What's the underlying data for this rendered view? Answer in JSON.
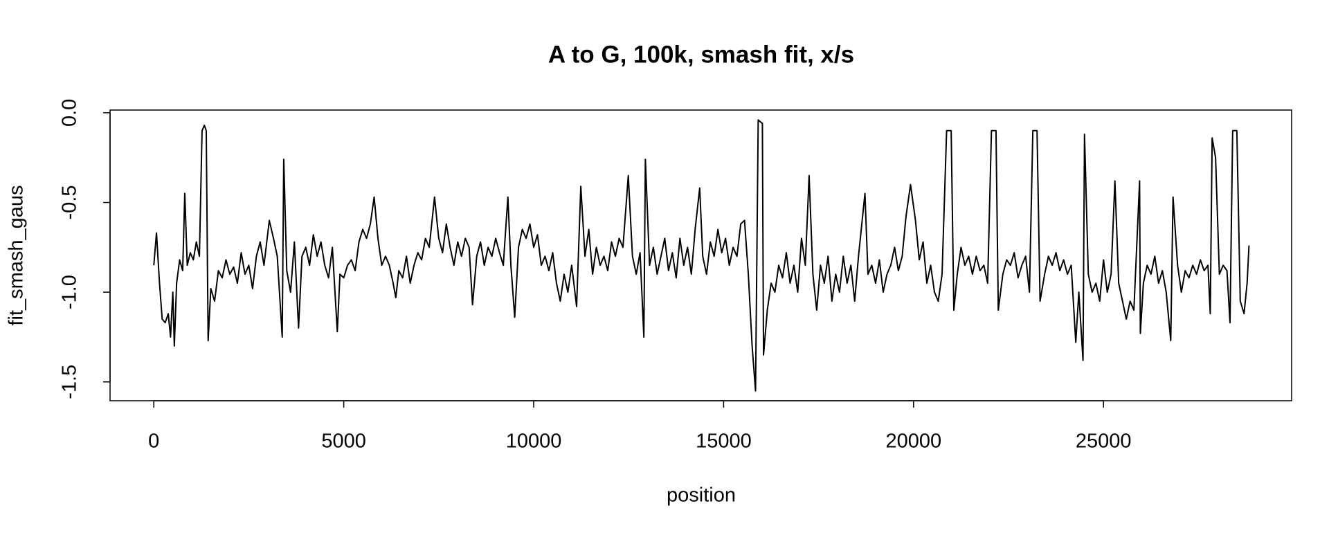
{
  "chart_data": {
    "type": "line",
    "title": "A to G, 100k, smash fit, x/s",
    "xlabel": "position",
    "ylabel": "fit_smash_gaus",
    "color": "#000000",
    "x": [
      0,
      70,
      150,
      220,
      300,
      380,
      440,
      500,
      540,
      600,
      680,
      760,
      815,
      880,
      960,
      1040,
      1120,
      1200,
      1270,
      1330,
      1380,
      1430,
      1500,
      1600,
      1700,
      1800,
      1900,
      2000,
      2100,
      2200,
      2300,
      2400,
      2500,
      2600,
      2700,
      2800,
      2900,
      3040,
      3150,
      3250,
      3380,
      3420,
      3500,
      3600,
      3700,
      3810,
      3900,
      4000,
      4100,
      4200,
      4300,
      4400,
      4500,
      4600,
      4700,
      4830,
      4900,
      5000,
      5100,
      5200,
      5300,
      5400,
      5500,
      5600,
      5700,
      5800,
      5900,
      6000,
      6100,
      6200,
      6300,
      6370,
      6450,
      6550,
      6650,
      6750,
      6850,
      6950,
      7050,
      7150,
      7250,
      7390,
      7500,
      7600,
      7700,
      7800,
      7900,
      8000,
      8100,
      8200,
      8300,
      8390,
      8500,
      8600,
      8700,
      8800,
      8900,
      9000,
      9100,
      9200,
      9320,
      9400,
      9500,
      9600,
      9700,
      9800,
      9900,
      10000,
      10100,
      10200,
      10300,
      10400,
      10500,
      10600,
      10700,
      10800,
      10900,
      11000,
      11130,
      11240,
      11350,
      11450,
      11550,
      11650,
      11750,
      11850,
      11950,
      12050,
      12150,
      12250,
      12350,
      12490,
      12600,
      12700,
      12800,
      12900,
      12940,
      13050,
      13150,
      13250,
      13350,
      13450,
      13550,
      13650,
      13750,
      13850,
      13950,
      14050,
      14150,
      14250,
      14370,
      14450,
      14550,
      14650,
      14750,
      14850,
      14950,
      15050,
      15150,
      15250,
      15350,
      15450,
      15550,
      15650,
      15750,
      15840,
      15910,
      16020,
      16050,
      16150,
      16250,
      16350,
      16450,
      16550,
      16650,
      16750,
      16850,
      16950,
      17050,
      17150,
      17250,
      17350,
      17450,
      17550,
      17650,
      17750,
      17850,
      17950,
      18050,
      18150,
      18250,
      18350,
      18450,
      18550,
      18720,
      18800,
      18900,
      19000,
      19100,
      19200,
      19300,
      19400,
      19500,
      19600,
      19700,
      19800,
      19920,
      20050,
      20150,
      20250,
      20350,
      20450,
      20550,
      20650,
      20750,
      20870,
      20990,
      21060,
      21150,
      21250,
      21350,
      21450,
      21550,
      21650,
      21750,
      21850,
      21950,
      22050,
      22170,
      22230,
      22350,
      22450,
      22550,
      22650,
      22750,
      22850,
      22950,
      23050,
      23140,
      23250,
      23330,
      23450,
      23550,
      23650,
      23750,
      23850,
      23950,
      24050,
      24150,
      24270,
      24350,
      24460,
      24500,
      24600,
      24700,
      24800,
      24900,
      25000,
      25100,
      25200,
      25300,
      25400,
      25500,
      25600,
      25700,
      25800,
      25950,
      25970,
      26050,
      26150,
      26250,
      26350,
      26450,
      26550,
      26650,
      26770,
      26830,
      26950,
      27050,
      27150,
      27250,
      27350,
      27450,
      27550,
      27650,
      27750,
      27810,
      27860,
      27950,
      28050,
      28150,
      28250,
      28330,
      28400,
      28510,
      28600,
      28700,
      28780,
      28830
    ],
    "values": [
      -0.85,
      -0.67,
      -0.95,
      -1.15,
      -1.17,
      -1.12,
      -1.25,
      -1.0,
      -1.3,
      -0.95,
      -0.82,
      -0.88,
      -0.45,
      -0.85,
      -0.78,
      -0.82,
      -0.72,
      -0.8,
      -0.1,
      -0.07,
      -0.1,
      -1.27,
      -0.98,
      -1.05,
      -0.88,
      -0.92,
      -0.82,
      -0.9,
      -0.86,
      -0.95,
      -0.78,
      -0.9,
      -0.85,
      -0.98,
      -0.8,
      -0.72,
      -0.85,
      -0.6,
      -0.7,
      -0.8,
      -1.25,
      -0.26,
      -0.88,
      -1.0,
      -0.72,
      -1.2,
      -0.8,
      -0.75,
      -0.85,
      -0.68,
      -0.8,
      -0.72,
      -0.85,
      -0.92,
      -0.75,
      -1.22,
      -0.9,
      -0.92,
      -0.85,
      -0.82,
      -0.88,
      -0.72,
      -0.65,
      -0.7,
      -0.62,
      -0.47,
      -0.7,
      -0.85,
      -0.8,
      -0.85,
      -0.95,
      -1.03,
      -0.88,
      -0.92,
      -0.8,
      -0.95,
      -0.85,
      -0.78,
      -0.82,
      -0.7,
      -0.75,
      -0.47,
      -0.7,
      -0.78,
      -0.62,
      -0.75,
      -0.85,
      -0.72,
      -0.8,
      -0.7,
      -0.75,
      -1.07,
      -0.8,
      -0.72,
      -0.85,
      -0.75,
      -0.8,
      -0.7,
      -0.78,
      -0.85,
      -0.47,
      -0.85,
      -1.14,
      -0.75,
      -0.65,
      -0.7,
      -0.62,
      -0.75,
      -0.68,
      -0.85,
      -0.8,
      -0.88,
      -0.78,
      -0.95,
      -1.05,
      -0.9,
      -1.0,
      -0.85,
      -1.08,
      -0.41,
      -0.8,
      -0.65,
      -0.9,
      -0.75,
      -0.85,
      -0.8,
      -0.88,
      -0.72,
      -0.8,
      -0.7,
      -0.75,
      -0.35,
      -0.8,
      -0.9,
      -0.78,
      -1.25,
      -0.26,
      -0.85,
      -0.75,
      -0.9,
      -0.8,
      -0.7,
      -0.88,
      -0.78,
      -0.92,
      -0.7,
      -0.85,
      -0.75,
      -0.9,
      -0.65,
      -0.42,
      -0.8,
      -0.9,
      -0.72,
      -0.8,
      -0.65,
      -0.78,
      -0.7,
      -0.85,
      -0.75,
      -0.8,
      -0.62,
      -0.6,
      -0.9,
      -1.3,
      -1.55,
      -0.04,
      -0.06,
      -1.35,
      -1.1,
      -0.95,
      -1.0,
      -0.85,
      -0.92,
      -0.78,
      -0.95,
      -0.85,
      -1.0,
      -0.7,
      -0.85,
      -0.35,
      -0.9,
      -1.1,
      -0.85,
      -0.95,
      -0.8,
      -1.05,
      -0.9,
      -1.0,
      -0.8,
      -0.95,
      -0.85,
      -1.05,
      -0.8,
      -0.45,
      -0.9,
      -0.85,
      -0.95,
      -0.82,
      -1.0,
      -0.9,
      -0.85,
      -0.75,
      -0.88,
      -0.8,
      -0.58,
      -0.4,
      -0.6,
      -0.82,
      -0.72,
      -0.95,
      -0.85,
      -1.0,
      -1.05,
      -0.9,
      -0.1,
      -0.1,
      -1.1,
      -0.9,
      -0.75,
      -0.85,
      -0.8,
      -0.9,
      -0.8,
      -0.88,
      -0.85,
      -0.95,
      -0.1,
      -0.1,
      -1.1,
      -0.9,
      -0.82,
      -0.85,
      -0.78,
      -0.92,
      -0.85,
      -0.8,
      -1.0,
      -0.1,
      -0.1,
      -1.05,
      -0.9,
      -0.8,
      -0.85,
      -0.78,
      -0.88,
      -0.82,
      -0.9,
      -0.85,
      -1.28,
      -1.0,
      -1.38,
      -0.12,
      -0.9,
      -1.0,
      -0.95,
      -1.05,
      -0.82,
      -1.0,
      -0.9,
      -0.38,
      -0.95,
      -1.05,
      -1.15,
      -1.05,
      -1.1,
      -0.38,
      -1.23,
      -0.95,
      -0.85,
      -0.9,
      -0.8,
      -0.95,
      -0.88,
      -1.0,
      -1.27,
      -0.47,
      -0.85,
      -1.0,
      -0.88,
      -0.92,
      -0.85,
      -0.9,
      -0.82,
      -0.88,
      -0.85,
      -1.12,
      -0.14,
      -0.25,
      -0.9,
      -0.85,
      -0.88,
      -1.17,
      -0.1,
      -0.1,
      -1.05,
      -1.12,
      -0.95,
      -0.74
    ],
    "xlim": [
      -1152,
      29952
    ],
    "ylim": [
      -1.605,
      0.015
    ],
    "xticks": [
      0,
      5000,
      10000,
      15000,
      20000,
      25000
    ],
    "yticks": [
      {
        "value": 0,
        "label": "0.0"
      },
      -0.5,
      {
        "value": -1,
        "label": "-1.0"
      },
      -1.5
    ]
  }
}
